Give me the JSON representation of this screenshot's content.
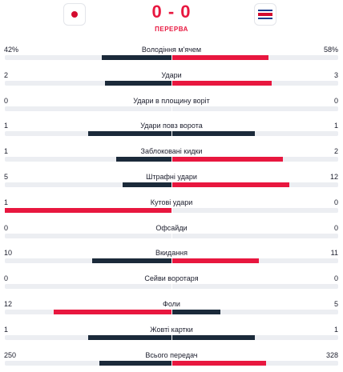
{
  "match": {
    "home_flag": "japan-flag-icon",
    "away_flag": "costa-rica-flag-icon",
    "score": "0 - 0",
    "status": "ПЕРЕРВА"
  },
  "colors": {
    "accent": "#e8173f",
    "dark": "#1b2a3a",
    "track": "#eceef2"
  },
  "stats": [
    {
      "label": "Володіння м'ячем",
      "home": "42%",
      "away": "58%",
      "home_val": 42,
      "away_val": 58
    },
    {
      "label": "Удари",
      "home": "2",
      "away": "3",
      "home_val": 2,
      "away_val": 3
    },
    {
      "label": "Удари в площину воріт",
      "home": "0",
      "away": "0",
      "home_val": 0,
      "away_val": 0
    },
    {
      "label": "Удари повз ворота",
      "home": "1",
      "away": "1",
      "home_val": 1,
      "away_val": 1
    },
    {
      "label": "Заблоковані кидки",
      "home": "1",
      "away": "2",
      "home_val": 1,
      "away_val": 2
    },
    {
      "label": "Штрафні удари",
      "home": "5",
      "away": "12",
      "home_val": 5,
      "away_val": 12
    },
    {
      "label": "Кутові удари",
      "home": "1",
      "away": "0",
      "home_val": 1,
      "away_val": 0
    },
    {
      "label": "Офсайди",
      "home": "0",
      "away": "0",
      "home_val": 0,
      "away_val": 0
    },
    {
      "label": "Вкидання",
      "home": "10",
      "away": "11",
      "home_val": 10,
      "away_val": 11
    },
    {
      "label": "Сейви воротаря",
      "home": "0",
      "away": "0",
      "home_val": 0,
      "away_val": 0
    },
    {
      "label": "Фоли",
      "home": "12",
      "away": "5",
      "home_val": 12,
      "away_val": 5
    },
    {
      "label": "Жовті картки",
      "home": "1",
      "away": "1",
      "home_val": 1,
      "away_val": 1
    },
    {
      "label": "Всього передач",
      "home": "250",
      "away": "328",
      "home_val": 250,
      "away_val": 328
    }
  ]
}
